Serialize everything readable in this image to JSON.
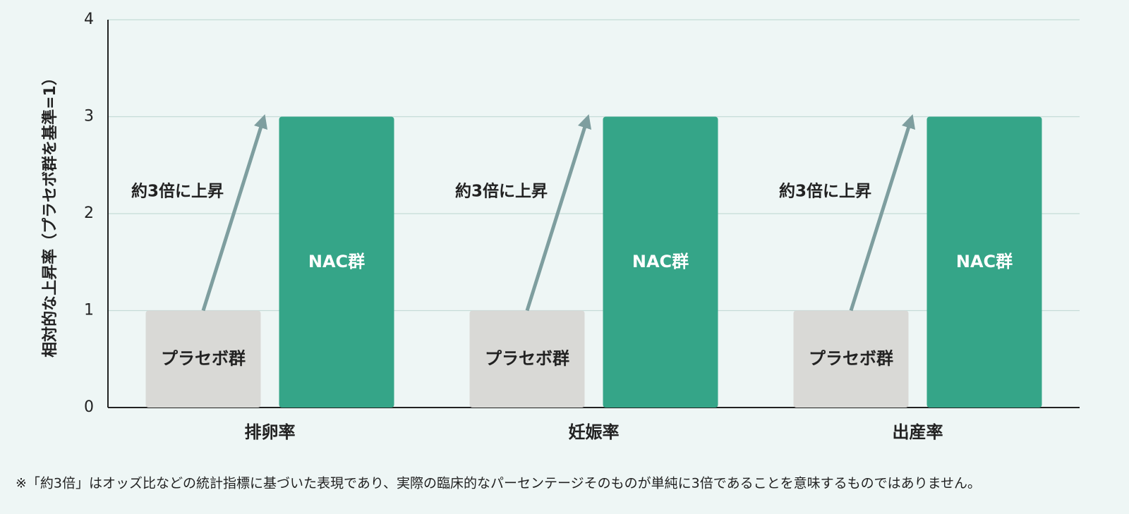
{
  "chart_data": {
    "type": "bar",
    "y_label": "相対的な上昇率（プラセボ群を基準=1）",
    "categories": [
      "排卵率",
      "妊娠率",
      "出産率"
    ],
    "series": [
      {
        "name": "プラセボ群",
        "color": "#d9d9d6",
        "values": [
          1,
          1,
          1
        ]
      },
      {
        "name": "NAC群",
        "color": "#35a588",
        "values": [
          3,
          3,
          3
        ]
      }
    ],
    "annotations": [
      "約3倍に上昇",
      "約3倍に上昇",
      "約3倍に上昇"
    ],
    "ylim": [
      0,
      4
    ],
    "yticks": [
      0,
      1,
      2,
      3,
      4
    ],
    "grid": true,
    "footnote": "※「約3倍」はオッズ比などの統計指標に基づいた表現であり、実際の臨床的なパーセンテージそのものが単純に3倍であることを意味するものではありません。"
  }
}
